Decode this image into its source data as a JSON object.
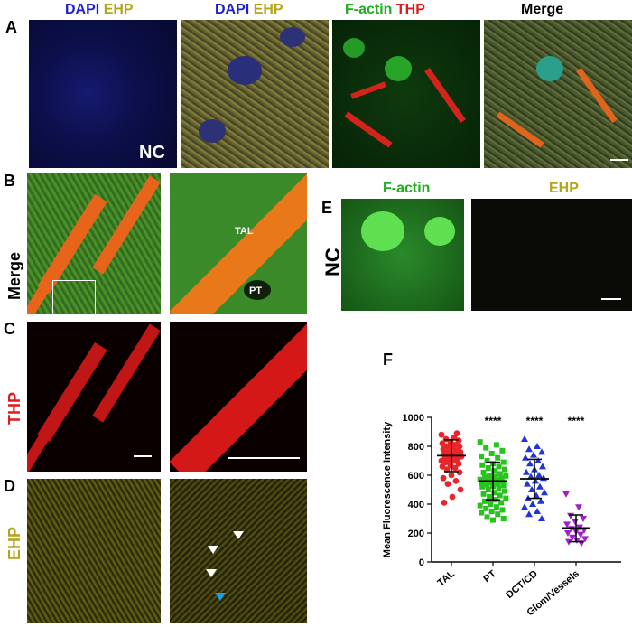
{
  "panel_letters": {
    "a": "A",
    "b": "B",
    "c": "C",
    "d": "D",
    "e": "E",
    "f": "F"
  },
  "row_a": {
    "p1": {
      "c1": "DAPI",
      "c2": "EHP"
    },
    "p2": {
      "c1": "DAPI",
      "c2": "EHP"
    },
    "p3": {
      "c1": "F-actin",
      "c2": "THP"
    },
    "p4": {
      "c1": "Merge"
    },
    "nc_label": "NC"
  },
  "row_labels": {
    "b": "Merge",
    "c": "THP",
    "d": "EHP"
  },
  "inset_labels": {
    "tal": "TAL",
    "pt": "PT"
  },
  "panel_e": {
    "h1": "F-actin",
    "h2": "EHP",
    "nc": "NC"
  },
  "colors": {
    "dapi": "#1f1fd0",
    "ehp": "#b3a51a",
    "factin": "#1fae1f",
    "thp": "#e01b1b",
    "merge": "#000000",
    "tal": "#e8262a",
    "pt": "#26c41c",
    "dct": "#1f35d6",
    "glom": "#a020c8"
  },
  "chart_data": {
    "type": "scatter",
    "ylabel": "Mean Fluorescence Intensity",
    "ylim": [
      0,
      1000
    ],
    "yticks": [
      0,
      200,
      400,
      600,
      800,
      1000
    ],
    "categories": [
      "TAL",
      "PT",
      "DCT/CD",
      "Glom/Vessels"
    ],
    "grid": false,
    "annotations": [
      "",
      "****",
      "****",
      "****"
    ],
    "summary": [
      {
        "mean": 735,
        "sd_low": 625,
        "sd_high": 845
      },
      {
        "mean": 560,
        "sd_low": 430,
        "sd_high": 690
      },
      {
        "mean": 575,
        "sd_low": 440,
        "sd_high": 710
      },
      {
        "mean": 235,
        "sd_low": 140,
        "sd_high": 325
      }
    ],
    "series": [
      {
        "values": [
          880,
          860,
          850,
          840,
          830,
          820,
          810,
          800,
          800,
          790,
          780,
          770,
          760,
          760,
          750,
          745,
          740,
          735,
          730,
          725,
          720,
          720,
          710,
          700,
          700,
          690,
          680,
          670,
          660,
          650,
          640,
          620,
          600,
          580,
          560,
          540,
          500,
          450,
          410,
          890
        ]
      },
      {
        "values": [
          830,
          810,
          790,
          770,
          750,
          730,
          720,
          700,
          690,
          680,
          670,
          660,
          650,
          640,
          630,
          620,
          610,
          600,
          595,
          590,
          585,
          580,
          575,
          570,
          565,
          560,
          555,
          550,
          545,
          540,
          535,
          530,
          525,
          520,
          510,
          500,
          490,
          480,
          470,
          460,
          450,
          440,
          430,
          420,
          410,
          400,
          390,
          380,
          370,
          360,
          350,
          340,
          330,
          310,
          300,
          290
        ]
      },
      {
        "values": [
          850,
          800,
          780,
          760,
          740,
          720,
          700,
          680,
          660,
          640,
          620,
          600,
          590,
          580,
          560,
          540,
          520,
          500,
          480,
          460,
          440,
          420,
          400,
          380,
          350,
          330,
          300
        ]
      },
      {
        "values": [
          470,
          380,
          320,
          300,
          280,
          260,
          240,
          230,
          220,
          210,
          200,
          190,
          170,
          160,
          150,
          140,
          130
        ]
      }
    ]
  }
}
